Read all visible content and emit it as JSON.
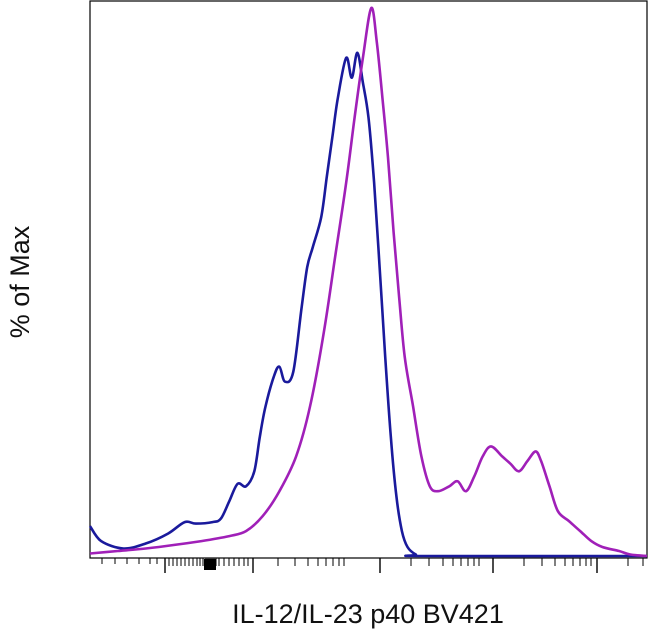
{
  "chart_data": {
    "type": "line",
    "xlabel": "IL-12/IL-23 p40 BV421",
    "ylabel": "% of Max",
    "x_scale": "biexponential",
    "grid": false,
    "legend": "none",
    "series": [
      {
        "color": "#1a1a9c",
        "points": [
          [
            0.0,
            6
          ],
          [
            0.02,
            3
          ],
          [
            0.06,
            1.5
          ],
          [
            0.1,
            2.5
          ],
          [
            0.14,
            4.5
          ],
          [
            0.17,
            6.8
          ],
          [
            0.19,
            6.5
          ],
          [
            0.22,
            6.8
          ],
          [
            0.235,
            7.5
          ],
          [
            0.25,
            11
          ],
          [
            0.265,
            14.5
          ],
          [
            0.28,
            14
          ],
          [
            0.295,
            17
          ],
          [
            0.305,
            24
          ],
          [
            0.315,
            30
          ],
          [
            0.33,
            36
          ],
          [
            0.34,
            38
          ],
          [
            0.35,
            35
          ],
          [
            0.365,
            37
          ],
          [
            0.38,
            50
          ],
          [
            0.39,
            58
          ],
          [
            0.4,
            62
          ],
          [
            0.415,
            68
          ],
          [
            0.425,
            76
          ],
          [
            0.435,
            84
          ],
          [
            0.445,
            92
          ],
          [
            0.46,
            100
          ],
          [
            0.47,
            96
          ],
          [
            0.48,
            101
          ],
          [
            0.49,
            95
          ],
          [
            0.5,
            88
          ],
          [
            0.51,
            75
          ],
          [
            0.52,
            58
          ],
          [
            0.53,
            40
          ],
          [
            0.54,
            24
          ],
          [
            0.55,
            12
          ],
          [
            0.56,
            5
          ],
          [
            0.57,
            1.8
          ],
          [
            0.585,
            0.3
          ],
          [
            0.6,
            0
          ],
          [
            1.0,
            0
          ]
        ]
      },
      {
        "color": "#a020b8",
        "points": [
          [
            0.0,
            0.5
          ],
          [
            0.05,
            1
          ],
          [
            0.1,
            1.5
          ],
          [
            0.15,
            2.2
          ],
          [
            0.2,
            3
          ],
          [
            0.25,
            4
          ],
          [
            0.28,
            5
          ],
          [
            0.31,
            8
          ],
          [
            0.34,
            13
          ],
          [
            0.37,
            20
          ],
          [
            0.395,
            30
          ],
          [
            0.42,
            45
          ],
          [
            0.44,
            60
          ],
          [
            0.46,
            75
          ],
          [
            0.475,
            88
          ],
          [
            0.49,
            100
          ],
          [
            0.505,
            110
          ],
          [
            0.515,
            103
          ],
          [
            0.525,
            92
          ],
          [
            0.535,
            80
          ],
          [
            0.545,
            65
          ],
          [
            0.555,
            52
          ],
          [
            0.565,
            40
          ],
          [
            0.58,
            30
          ],
          [
            0.595,
            20
          ],
          [
            0.61,
            14
          ],
          [
            0.625,
            13
          ],
          [
            0.645,
            14
          ],
          [
            0.66,
            15
          ],
          [
            0.675,
            13
          ],
          [
            0.69,
            16
          ],
          [
            0.705,
            20
          ],
          [
            0.72,
            22
          ],
          [
            0.74,
            20
          ],
          [
            0.755,
            18.5
          ],
          [
            0.77,
            17
          ],
          [
            0.785,
            19
          ],
          [
            0.8,
            21
          ],
          [
            0.81,
            19
          ],
          [
            0.825,
            14
          ],
          [
            0.84,
            9
          ],
          [
            0.86,
            7
          ],
          [
            0.88,
            5
          ],
          [
            0.9,
            3
          ],
          [
            0.92,
            1.8
          ],
          [
            0.95,
            1
          ],
          [
            0.97,
            0.3
          ],
          [
            1.0,
            0
          ]
        ]
      }
    ],
    "xlim": [
      0,
      1
    ],
    "ylim": [
      0,
      110
    ]
  }
}
